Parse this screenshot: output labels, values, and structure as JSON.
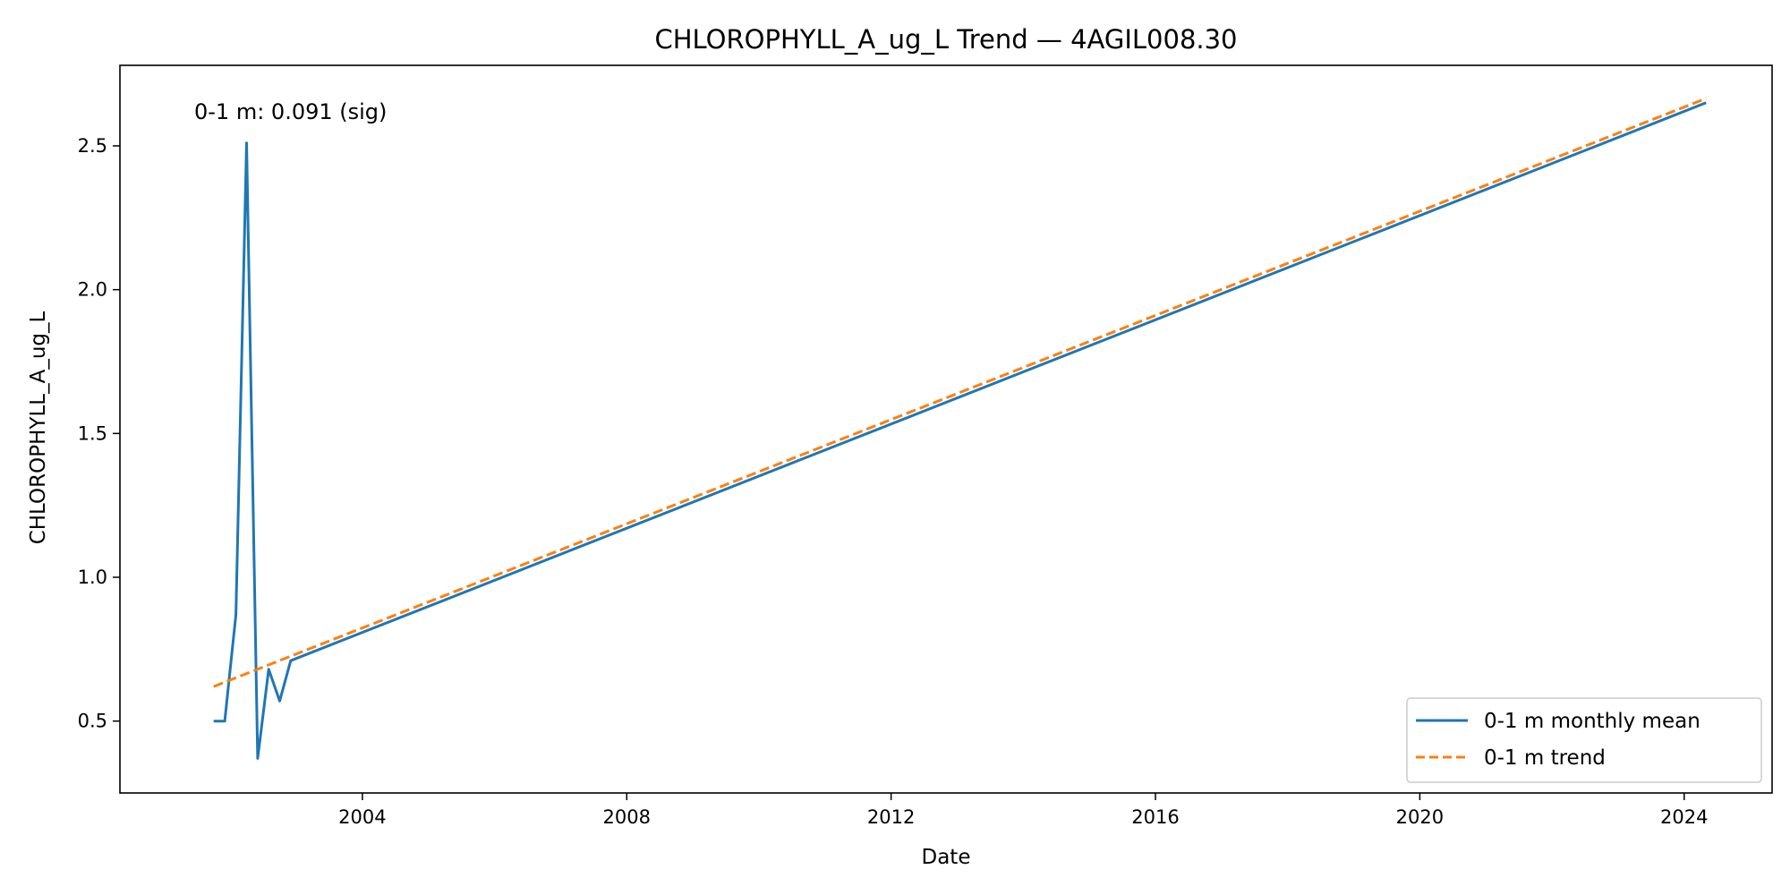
{
  "chart_data": {
    "type": "line",
    "title": "CHLOROPHYLL_A_ug_L Trend — 4AGIL008.30",
    "xlabel": "Date",
    "ylabel": "CHLOROPHYLL_A_ug_L",
    "x_ticks": [
      "2004",
      "2008",
      "2012",
      "2016",
      "2020",
      "2024"
    ],
    "y_ticks": [
      "0.5",
      "1.0",
      "1.5",
      "2.0",
      "2.5"
    ],
    "xlim": [
      "2000-05-01",
      "2025-05-01"
    ],
    "ylim": [
      0.25,
      2.78
    ],
    "grid": false,
    "legend_position": "lower right",
    "annotation": "0-1 m: 0.091 (sig)",
    "series": [
      {
        "name": "0-1 m monthly mean",
        "color": "#1f77b4",
        "style": "solid",
        "points": [
          {
            "x": "2001-10-01",
            "y": 0.5
          },
          {
            "x": "2001-12-01",
            "y": 0.5
          },
          {
            "x": "2002-02-01",
            "y": 0.87
          },
          {
            "x": "2002-04-01",
            "y": 2.51
          },
          {
            "x": "2002-06-01",
            "y": 0.37
          },
          {
            "x": "2002-08-01",
            "y": 0.68
          },
          {
            "x": "2002-10-01",
            "y": 0.57
          },
          {
            "x": "2002-12-01",
            "y": 0.71
          },
          {
            "x": "2024-05-01",
            "y": 2.65
          }
        ]
      },
      {
        "name": "0-1 m trend",
        "color": "#ff7f0e",
        "style": "dashed",
        "points": [
          {
            "x": "2001-10-01",
            "y": 0.62
          },
          {
            "x": "2024-05-01",
            "y": 2.665
          }
        ]
      }
    ]
  }
}
